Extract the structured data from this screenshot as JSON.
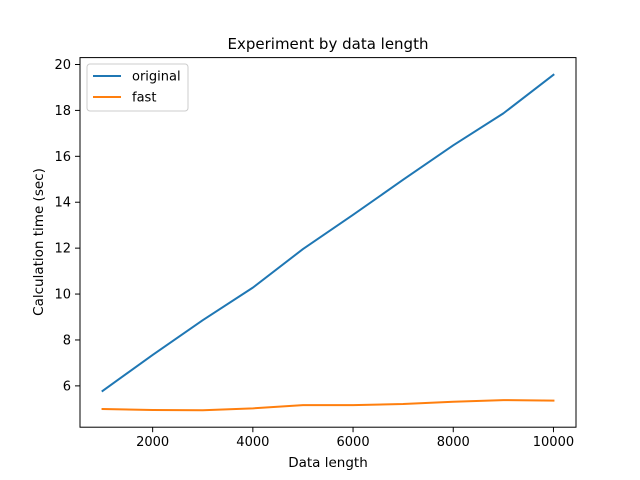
{
  "chart_data": {
    "type": "line",
    "title": "Experiment by data length",
    "xlabel": "Data length",
    "ylabel": "Calculation time (sec)",
    "x": [
      1000,
      2000,
      3000,
      4000,
      5000,
      6000,
      7000,
      8000,
      9000,
      10000
    ],
    "xlim": [
      550,
      10450
    ],
    "ylim": [
      4.2,
      20.3
    ],
    "xticks": [
      2000,
      4000,
      6000,
      8000,
      10000
    ],
    "yticks": [
      6,
      8,
      10,
      12,
      14,
      16,
      18,
      20
    ],
    "grid": false,
    "legend": "top-left",
    "series": [
      {
        "name": "original",
        "color": "#1f77b4",
        "values": [
          5.78,
          7.35,
          8.86,
          10.28,
          11.96,
          13.45,
          14.98,
          16.48,
          17.87,
          19.55
        ]
      },
      {
        "name": "fast",
        "color": "#ff7f0e",
        "values": [
          4.99,
          4.95,
          4.94,
          5.02,
          5.16,
          5.16,
          5.21,
          5.31,
          5.38,
          5.36
        ]
      }
    ]
  }
}
